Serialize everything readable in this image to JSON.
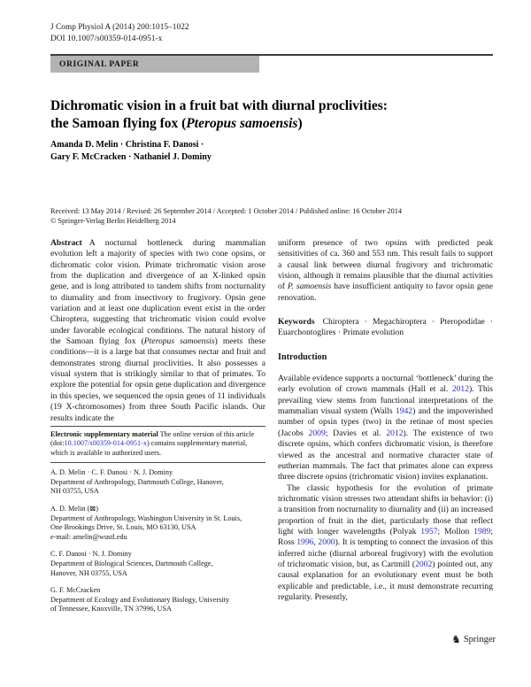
{
  "header": {
    "journal_ref": "J Comp Physiol A (2014) 200:1015–1022",
    "doi": "DOI 10.1007/s00359-014-0951-x",
    "section_label": "ORIGINAL PAPER"
  },
  "title": {
    "line1": "Dichromatic vision in a fruit bat with diurnal proclivities:",
    "line2_segments": [
      {
        "t": "the Samoan flying fox ("
      },
      {
        "t": "Pteropus samoensis",
        "c": "i"
      },
      {
        "t": ")"
      }
    ]
  },
  "authors": {
    "line1": "Amanda D. Melin · Christina F. Danosi · ",
    "line2": "Gary F. McCracken · Nathaniel J. Dominy"
  },
  "history": {
    "dates_line": "Received: 13 May 2014 / Revised: 26 September 2014 / Accepted: 1 October 2014 / Published online: 16 October 2014",
    "copyright_line": "© Springer-Verlag Berlin Heidelberg 2014"
  },
  "abstract": {
    "label": "Abstract",
    "left_segments": [
      {
        "t": "A nocturnal bottleneck during mammalian evolution left a majority of species with two cone opsins, or dichromatic color vision. Primate trichromatic vision arose from the duplication and divergence of an X-linked opsin gene, and is long attributed to tandem shifts from nocturnality to diurnality and from insectivory to frugivory. Opsin gene variation and at least one duplication event exist in the order Chiroptera, suggesting that trichromatic vision could evolve under favorable ecological conditions. The natural history of the Samoan flying fox ("
      },
      {
        "t": "Pteropus samoensis",
        "c": "i"
      },
      {
        "t": ") meets these conditions—it is a large bat that consumes nectar and fruit and demonstrates strong diurnal proclivities. It also possesses a visual system that is strikingly similar to that of primates. To explore the potential for opsin gene duplication and divergence in this species, we sequenced the opsin genes of 11 individuals (19 X-chromosomes) from three South Pacific islands. Our results indicate the"
      }
    ],
    "right_segments": [
      {
        "t": "uniform presence of two opsins with predicted peak sensitivities of ca. 360 and 553 nm. This result fails to support a causal link between diurnal frugivory and trichromatic vision, although it remains plausible that the diurnal activities of "
      },
      {
        "t": "P. samoensis",
        "c": "i"
      },
      {
        "t": " have insufficient antiquity to favor opsin gene renovation."
      }
    ]
  },
  "keywords": {
    "label": "Keywords",
    "text": "Chiroptera · Megachiroptera · Pteropodidae · Euarchontoglires · Primate evolution"
  },
  "supplementary_note": {
    "segments": [
      {
        "t": "Electronic supplementary material",
        "c": "b"
      },
      {
        "t": "  The online version of this article (doi:"
      },
      {
        "t": "10.1007/s00359-014-0951-x",
        "c": "link"
      },
      {
        "t": ") contains supplementary material, which is available to authorized users."
      }
    ]
  },
  "affiliations": [
    {
      "lines": [
        "A. D. Melin · C. F. Danosi · N. J. Dominy",
        "Department of Anthropology, Dartmouth College, Hanover,",
        "NH 03755, USA"
      ]
    },
    {
      "lines": [
        "A. D. Melin (⊠)",
        "Department of Anthropology, Washington University in St. Louis,",
        "One Brookings Drive, St. Louis, MO 63130, USA",
        "e-mail: amelin@wustl.edu"
      ]
    },
    {
      "lines": [
        "C. F. Danosi · N. J. Dominy",
        "Department of Biological Sciences, Dartmouth College,",
        "Hanover, NH 03755, USA"
      ]
    },
    {
      "lines": [
        "G. F. McCracken",
        "Department of Ecology and Evolutionary Biology, University",
        "of Tennessee, Knoxville, TN 37996, USA"
      ]
    }
  ],
  "introduction": {
    "heading": "Introduction",
    "para1_segments": [
      {
        "t": "Available evidence supports a nocturnal ‘bottleneck’ during the early evolution of crown mammals (Hall et al. "
      },
      {
        "t": "2012",
        "c": "link"
      },
      {
        "t": "). This prevailing view stems from functional interpretations of the mammalian visual system (Walls "
      },
      {
        "t": "1942",
        "c": "link"
      },
      {
        "t": ") and the impoverished number of opsin types (two) in the retinae of most species (Jacobs "
      },
      {
        "t": "2009",
        "c": "link"
      },
      {
        "t": "; Davies et al. "
      },
      {
        "t": "2012",
        "c": "link"
      },
      {
        "t": "). The existence of two discrete opsins, which confers dichromatic vision, is therefore viewed as the ancestral and normative character state of eutherian mammals. The fact that primates alone can express three discrete opsins (trichromatic vision) invites explanation."
      }
    ],
    "para2_segments": [
      {
        "t": "The classic hypothesis for the evolution of primate trichromatic vision stresses two attendant shifts in behavior: (i) a transition from nocturnality to diurnality and (ii) an increased proportion of fruit in the diet, particularly those that reflect light with longer wavelengths (Polyak "
      },
      {
        "t": "1957",
        "c": "link"
      },
      {
        "t": "; Mollon "
      },
      {
        "t": "1989",
        "c": "link"
      },
      {
        "t": "; Ross "
      },
      {
        "t": "1996",
        "c": "link"
      },
      {
        "t": ", "
      },
      {
        "t": "2000",
        "c": "link"
      },
      {
        "t": "). It is tempting to connect the invasion of this inferred niche (diurnal arboreal frugivory) with the evolution of trichromatic vision, but, as Cartmill ("
      },
      {
        "t": "2002",
        "c": "link"
      },
      {
        "t": ") pointed out, any causal explanation for an evolutionary event must be both explicable and predictable, i.e., it must demonstrate recurring regularity. Presently,"
      }
    ]
  },
  "footer": {
    "publisher": "Springer",
    "logo_glyph": "♞"
  },
  "colors": {
    "link_blue": "#2b2fc0",
    "banner_gray": "#b3b3b3"
  }
}
